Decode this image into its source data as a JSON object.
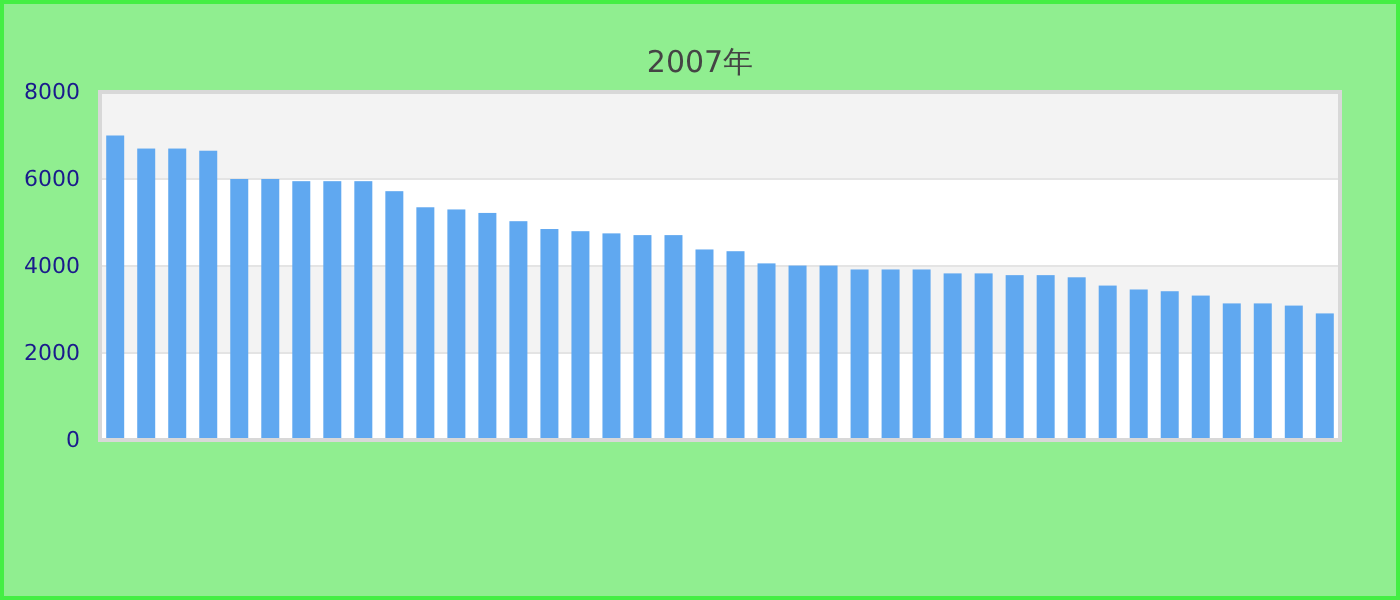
{
  "chart_data": {
    "type": "bar",
    "subtitle": "2007年",
    "categories": [
      null,
      null,
      null,
      null,
      null,
      null,
      null,
      null,
      null,
      null,
      null,
      null,
      null,
      null,
      null,
      null,
      null,
      null,
      null,
      null,
      null,
      null,
      null,
      null,
      null,
      null,
      null,
      null,
      null,
      null,
      null,
      null,
      null,
      null,
      null,
      null,
      null,
      null,
      null,
      null
    ],
    "values": [
      7000,
      6700,
      6700,
      6650,
      6000,
      6000,
      5950,
      5950,
      5950,
      5720,
      5350,
      5300,
      5220,
      5030,
      4850,
      4800,
      4750,
      4710,
      4710,
      4380,
      4340,
      4060,
      4010,
      4010,
      3920,
      3920,
      3920,
      3830,
      3830,
      3790,
      3790,
      3740,
      3550,
      3460,
      3420,
      3320,
      3140,
      3140,
      3090,
      2910
    ],
    "color": "#60a8f0",
    "ylim": [
      0,
      8000
    ],
    "yticks": [
      0,
      2000,
      4000,
      6000,
      8000
    ],
    "grid": "y"
  }
}
